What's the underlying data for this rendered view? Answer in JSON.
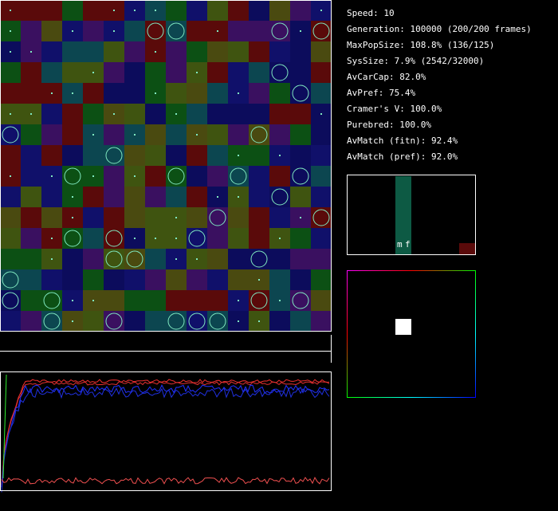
{
  "stats": [
    "Speed: 10",
    "Generation: 100000 (200/200 frames)",
    "MaxPopSize: 108.8% (136/125)",
    "SysSize: 7.9% (2542/32000)",
    "AvCarCap: 82.0%",
    "AvPref: 75.4%",
    "Cramer's V: 100.0%",
    "Purebred: 100.0%",
    "AvMatch (fitn): 92.4%",
    "AvMatch (pref): 92.0%"
  ],
  "histogram": {
    "labels": [
      "m",
      "f"
    ]
  }
}
